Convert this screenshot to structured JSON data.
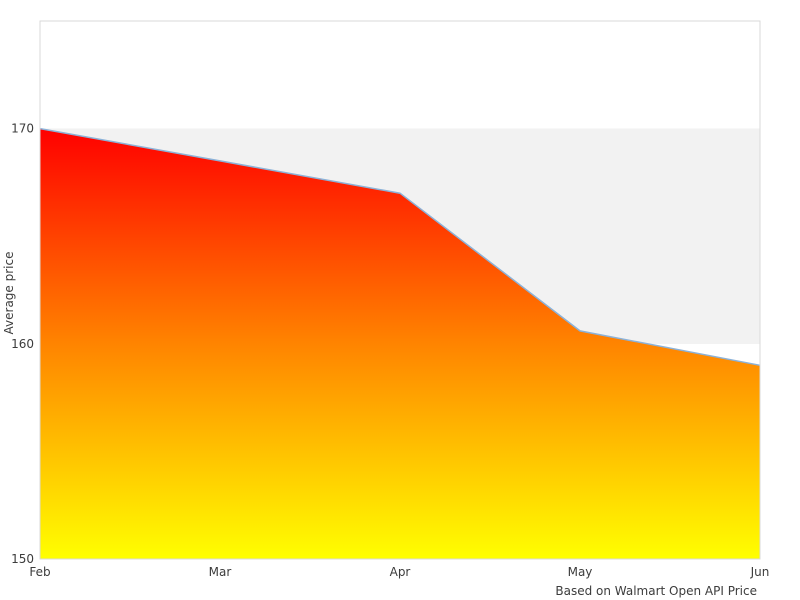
{
  "chart_data": {
    "type": "area",
    "title": "",
    "x": [
      "Feb",
      "Mar",
      "Apr",
      "May",
      "Jun"
    ],
    "series": [
      {
        "name": "Average price",
        "values": [
          170,
          168.5,
          167,
          160.6,
          159
        ]
      }
    ],
    "xlabel": "",
    "ylabel": "Average price",
    "ylim": [
      150,
      175
    ],
    "yticks": [
      150,
      160,
      170
    ],
    "grid": "band",
    "grid_band": {
      "from": 160,
      "to": 170,
      "color": "#f2f2f2"
    },
    "legend_position": "none",
    "line_color": "#8cb2d8",
    "gradient_stops": [
      {
        "offset": "0%",
        "color": "#ff0000"
      },
      {
        "offset": "50%",
        "color": "#ff8400"
      },
      {
        "offset": "100%",
        "color": "#ffff00"
      }
    ],
    "plot_border_color": "#d9d9d9",
    "tick_label_color": "#3c3c3c",
    "caption": "Based on Walmart Open API Price"
  }
}
